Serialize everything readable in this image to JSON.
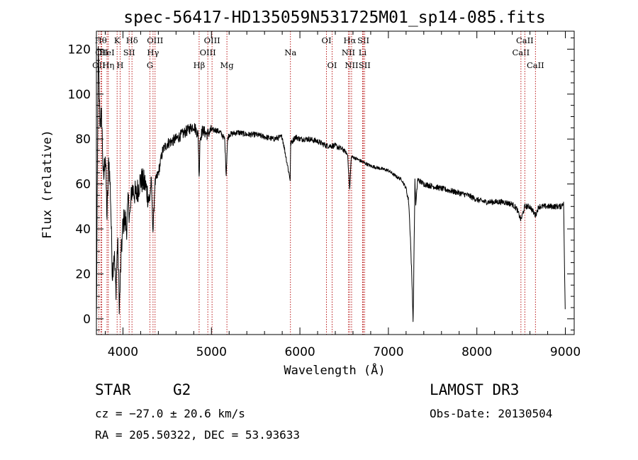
{
  "chart_data": {
    "type": "line",
    "title": "spec-56417-HD135059N531725M01_sp14-085.fits",
    "xlabel": "Wavelength (Å)",
    "ylabel": "Flux (relative)",
    "xlim": [
      3700,
      9100
    ],
    "ylim": [
      -7,
      128
    ],
    "xticks": [
      4000,
      5000,
      6000,
      7000,
      8000,
      9000
    ],
    "yticks": [
      0,
      20,
      40,
      60,
      80,
      100,
      120
    ],
    "grid": false,
    "series": [
      {
        "name": "flux",
        "x": [
          3700,
          3720,
          3740,
          3760,
          3780,
          3800,
          3820,
          3840,
          3860,
          3880,
          3900,
          3920,
          3940,
          3960,
          3980,
          4000,
          4020,
          4040,
          4060,
          4080,
          4100,
          4150,
          4200,
          4250,
          4300,
          4320,
          4340,
          4360,
          4400,
          4450,
          4500,
          4600,
          4700,
          4800,
          4850,
          4861,
          4870,
          4900,
          4950,
          5000,
          5050,
          5100,
          5150,
          5167,
          5172,
          5183,
          5200,
          5300,
          5400,
          5500,
          5600,
          5700,
          5800,
          5890,
          5896,
          5950,
          6000,
          6100,
          6200,
          6300,
          6400,
          6500,
          6540,
          6563,
          6580,
          6600,
          6700,
          6800,
          6900,
          7000,
          7100,
          7150,
          7200,
          7230,
          7250,
          7270,
          7280,
          7300,
          7310,
          7330,
          7400,
          7500,
          7600,
          7700,
          7800,
          7900,
          8000,
          8100,
          8200,
          8300,
          8400,
          8450,
          8498,
          8542,
          8600,
          8662,
          8700,
          8800,
          8900,
          8950,
          8980,
          9000
        ],
        "y": [
          -3,
          118,
          88,
          90,
          60,
          75,
          45,
          72,
          55,
          20,
          30,
          12,
          35,
          5,
          28,
          42,
          45,
          40,
          52,
          45,
          58,
          55,
          62,
          60,
          52,
          62,
          38,
          60,
          65,
          75,
          78,
          80,
          83,
          86,
          82,
          62,
          80,
          84,
          82,
          84,
          84,
          83,
          80,
          64,
          70,
          80,
          82,
          83,
          82,
          82,
          81,
          80,
          81,
          62,
          78,
          81,
          80,
          80,
          79,
          77,
          77,
          75,
          73,
          57,
          72,
          72,
          70,
          68,
          67,
          66,
          63,
          62,
          58,
          52,
          35,
          12,
          -2,
          62,
          50,
          62,
          60,
          59,
          58,
          57,
          56,
          55,
          53,
          52,
          52,
          52,
          51,
          49,
          44,
          50,
          50,
          46,
          50,
          50,
          50,
          50,
          52,
          -2
        ]
      }
    ],
    "lines": [
      {
        "label": "OII",
        "wavelength": 3727,
        "row": 3
      },
      {
        "label": "Hθ",
        "wavelength": 3750,
        "row": 1
      },
      {
        "label": "OII",
        "wavelength": 3760,
        "row": 2
      },
      {
        "label": "Hη",
        "wavelength": 3835,
        "row": 3
      },
      {
        "label": "HeI",
        "wavelength": 3820,
        "row": 2
      },
      {
        "label": "K",
        "wavelength": 3934,
        "row": 1
      },
      {
        "label": "SII",
        "wavelength": 4070,
        "row": 2
      },
      {
        "label": "H",
        "wavelength": 3968,
        "row": 3
      },
      {
        "label": "Hδ",
        "wavelength": 4102,
        "row": 1
      },
      {
        "label": "OIII",
        "wavelength": 4363,
        "row": 1
      },
      {
        "label": "Hγ",
        "wavelength": 4340,
        "row": 2
      },
      {
        "label": "G",
        "wavelength": 4305,
        "row": 3
      },
      {
        "label": "Hβ",
        "wavelength": 4861,
        "row": 3
      },
      {
        "label": "OIII",
        "wavelength": 4959,
        "row": 2
      },
      {
        "label": "OIII",
        "wavelength": 5007,
        "row": 1
      },
      {
        "label": "Mg",
        "wavelength": 5175,
        "row": 3
      },
      {
        "label": "Na",
        "wavelength": 5893,
        "row": 2
      },
      {
        "label": "OI",
        "wavelength": 6300,
        "row": 1
      },
      {
        "label": "OI",
        "wavelength": 6364,
        "row": 3
      },
      {
        "label": "Hα",
        "wavelength": 6563,
        "row": 1
      },
      {
        "label": "NII",
        "wavelength": 6548,
        "row": 2
      },
      {
        "label": "NII",
        "wavelength": 6584,
        "row": 3
      },
      {
        "label": "SII",
        "wavelength": 6717,
        "row": 1
      },
      {
        "label": "Li",
        "wavelength": 6708,
        "row": 2
      },
      {
        "label": "SII",
        "wavelength": 6731,
        "row": 3
      },
      {
        "label": "CaII",
        "wavelength": 8498,
        "row": 2
      },
      {
        "label": "CaII",
        "wavelength": 8542,
        "row": 1
      },
      {
        "label": "CaII",
        "wavelength": 8662,
        "row": 3
      }
    ]
  },
  "info": {
    "class": "STAR",
    "subclass": "G2",
    "cz": "cz = −27.0 ± 20.6 km/s",
    "radec": "RA = 205.50322, DEC =  53.93633",
    "survey": "LAMOST DR3",
    "obsdate": "Obs-Date: 20130504"
  }
}
